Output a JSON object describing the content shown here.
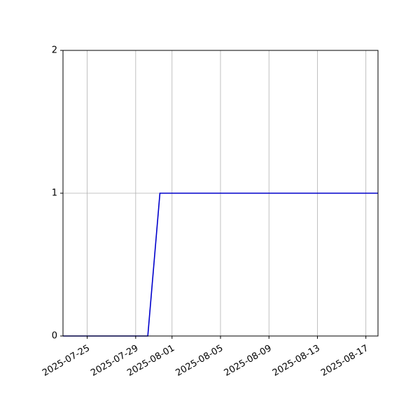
{
  "chart_data": {
    "type": "line",
    "title": "",
    "xlabel": "",
    "ylabel": "",
    "x_type": "date",
    "xlim": [
      "2025-07-23",
      "2025-08-18"
    ],
    "ylim": [
      0,
      2
    ],
    "x_ticks": [
      "2025-07-25",
      "2025-07-29",
      "2025-08-01",
      "2025-08-05",
      "2025-08-09",
      "2025-08-13",
      "2025-08-17"
    ],
    "y_ticks": [
      0,
      1,
      2
    ],
    "grid": true,
    "legend": false,
    "series": [
      {
        "color": "#0000cc",
        "points": [
          {
            "x": "2025-07-23",
            "y": 0
          },
          {
            "x": "2025-07-30",
            "y": 0
          },
          {
            "x": "2025-07-31",
            "y": 1
          },
          {
            "x": "2025-08-18",
            "y": 1
          }
        ]
      }
    ]
  }
}
